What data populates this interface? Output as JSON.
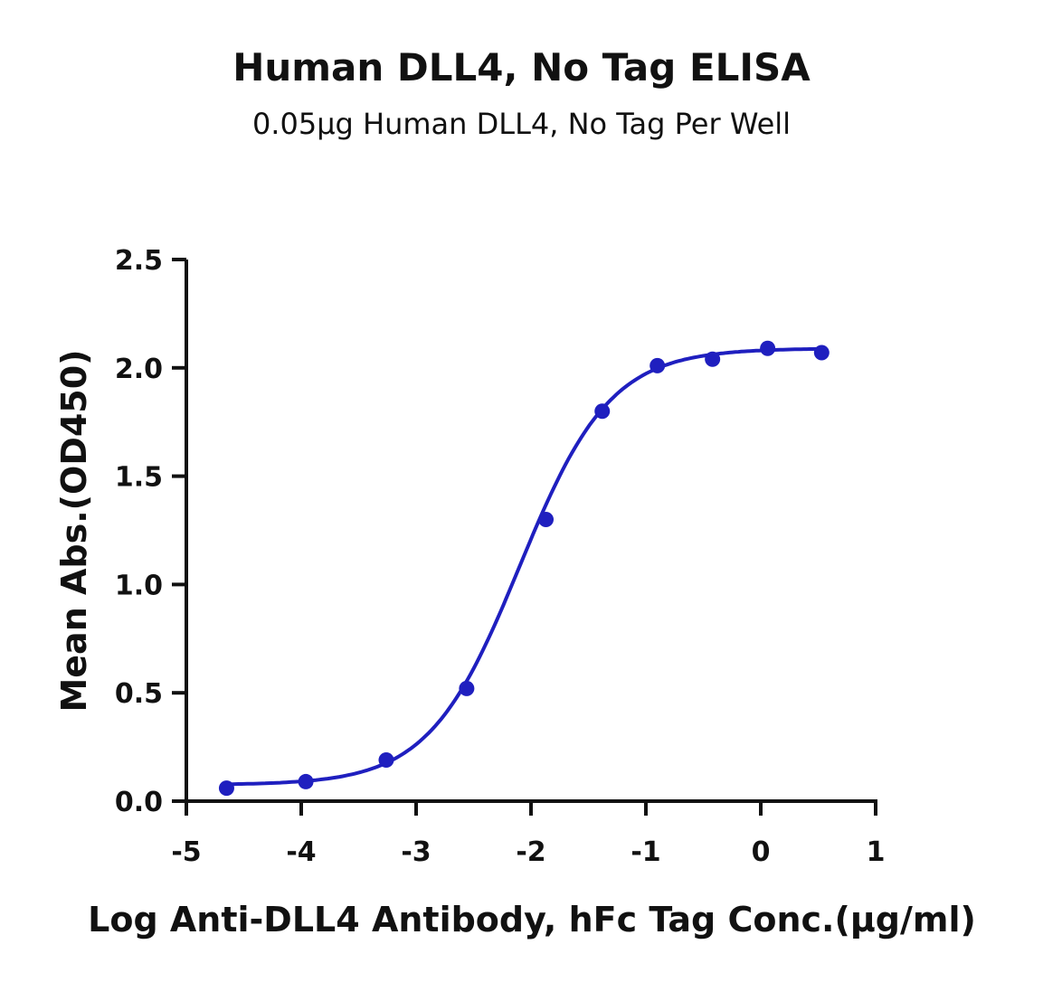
{
  "chart_data": {
    "type": "scatter",
    "title": "Human DLL4, No Tag ELISA",
    "subtitle": "0.05µg Human DLL4, No Tag Per Well",
    "xlabel": "Log Anti-DLL4 Antibody, hFc Tag Conc.(µg/ml)",
    "ylabel": "Mean Abs.(OD450)",
    "xlim": [
      -5,
      1
    ],
    "ylim": [
      0,
      2.5
    ],
    "xticks": [
      "-5",
      "-4",
      "-3",
      "-2",
      "-1",
      "0",
      "1"
    ],
    "yticks": [
      "0.0",
      "0.5",
      "1.0",
      "1.5",
      "2.0",
      "2.5"
    ],
    "grid": false,
    "color": "#1f1fbf",
    "points": [
      {
        "x": -4.65,
        "y": 0.06
      },
      {
        "x": -3.96,
        "y": 0.09
      },
      {
        "x": -3.26,
        "y": 0.19
      },
      {
        "x": -2.56,
        "y": 0.52
      },
      {
        "x": -1.87,
        "y": 1.3
      },
      {
        "x": -1.38,
        "y": 1.8
      },
      {
        "x": -0.9,
        "y": 2.01
      },
      {
        "x": -0.42,
        "y": 2.04
      },
      {
        "x": 0.06,
        "y": 2.09
      },
      {
        "x": 0.53,
        "y": 2.07
      }
    ],
    "fit": {
      "model": "4PL",
      "bottom": 0.075,
      "top": 2.09,
      "logEC50": -2.1,
      "hill": 1.1
    }
  }
}
